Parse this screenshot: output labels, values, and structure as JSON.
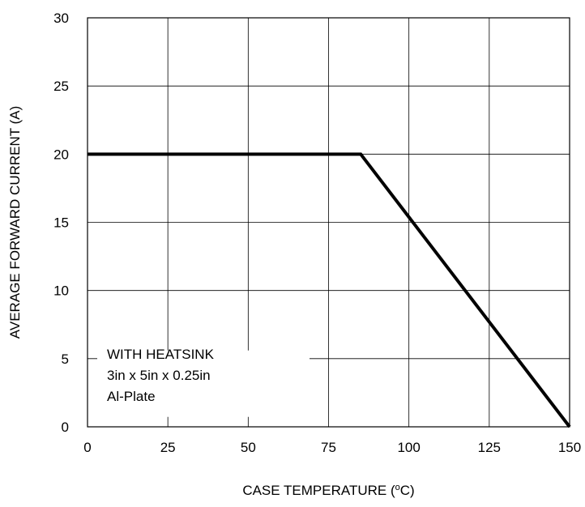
{
  "chart_data": {
    "type": "line",
    "title": "",
    "xlabel": "CASE TEMPERATURE (°C)",
    "xlabel_parts": {
      "before": "CASE TEMPERATURE (",
      "sup": "o",
      "after": "C)"
    },
    "ylabel": "AVERAGE FORWARD CURRENT (A)",
    "xlim": [
      0,
      150
    ],
    "ylim": [
      0,
      30
    ],
    "xticks": [
      0,
      25,
      50,
      75,
      100,
      125,
      150
    ],
    "yticks": [
      0,
      5,
      10,
      15,
      20,
      25,
      30
    ],
    "grid": true,
    "series": [
      {
        "x": [
          0,
          85,
          150
        ],
        "y": [
          20,
          20,
          0
        ],
        "color": "#000000"
      }
    ],
    "annotation": {
      "lines": [
        "WITH HEATSINK",
        "3in x 5in x 0.25in",
        "Al-Plate"
      ]
    }
  }
}
